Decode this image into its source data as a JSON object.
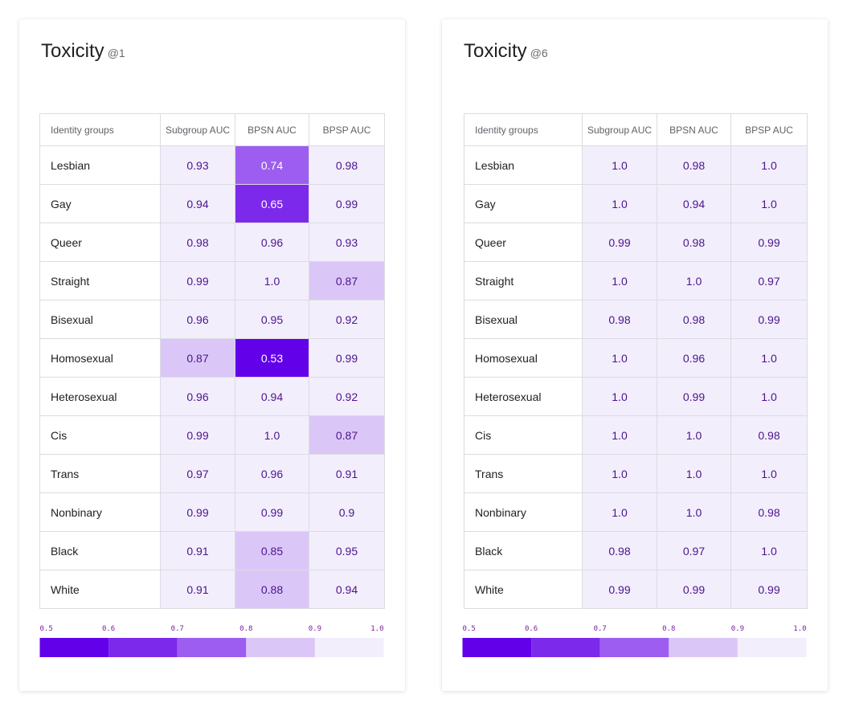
{
  "colors": {
    "scale": [
      "#6200ea",
      "#7c29ec",
      "#9d5df0",
      "#dbc7f7",
      "#f3eefc"
    ],
    "text_dark": "#4a148c",
    "text_light": "#ffffff",
    "tick": "#7b1fa2"
  },
  "chart_data": [
    {
      "type": "heatmap",
      "title": "Toxicity",
      "subtitle": "@1",
      "columns": [
        "Identity groups",
        "Subgroup AUC",
        "BPSN AUC",
        "BPSP AUC"
      ],
      "rows": [
        {
          "label": "Lesbian",
          "values": [
            "0.93",
            "0.74",
            "0.98"
          ]
        },
        {
          "label": "Gay",
          "values": [
            "0.94",
            "0.65",
            "0.99"
          ]
        },
        {
          "label": "Queer",
          "values": [
            "0.98",
            "0.96",
            "0.93"
          ]
        },
        {
          "label": "Straight",
          "values": [
            "0.99",
            "1.0",
            "0.87"
          ]
        },
        {
          "label": "Bisexual",
          "values": [
            "0.96",
            "0.95",
            "0.92"
          ]
        },
        {
          "label": "Homosexual",
          "values": [
            "0.87",
            "0.53",
            "0.99"
          ]
        },
        {
          "label": "Heterosexual",
          "values": [
            "0.96",
            "0.94",
            "0.92"
          ]
        },
        {
          "label": "Cis",
          "values": [
            "0.99",
            "1.0",
            "0.87"
          ]
        },
        {
          "label": "Trans",
          "values": [
            "0.97",
            "0.96",
            "0.91"
          ]
        },
        {
          "label": "Nonbinary",
          "values": [
            "0.99",
            "0.99",
            "0.9"
          ]
        },
        {
          "label": "Black",
          "values": [
            "0.91",
            "0.85",
            "0.95"
          ]
        },
        {
          "label": "White",
          "values": [
            "0.91",
            "0.88",
            "0.94"
          ]
        }
      ],
      "legend": {
        "ticks": [
          "0.5",
          "0.6",
          "0.7",
          "0.8",
          "0.9",
          "1.0"
        ],
        "range": [
          0.5,
          1.0
        ]
      }
    },
    {
      "type": "heatmap",
      "title": "Toxicity",
      "subtitle": "@6",
      "columns": [
        "Identity groups",
        "Subgroup AUC",
        "BPSN AUC",
        "BPSP AUC"
      ],
      "rows": [
        {
          "label": "Lesbian",
          "values": [
            "1.0",
            "0.98",
            "1.0"
          ]
        },
        {
          "label": "Gay",
          "values": [
            "1.0",
            "0.94",
            "1.0"
          ]
        },
        {
          "label": "Queer",
          "values": [
            "0.99",
            "0.98",
            "0.99"
          ]
        },
        {
          "label": "Straight",
          "values": [
            "1.0",
            "1.0",
            "0.97"
          ]
        },
        {
          "label": "Bisexual",
          "values": [
            "0.98",
            "0.98",
            "0.99"
          ]
        },
        {
          "label": "Homosexual",
          "values": [
            "1.0",
            "0.96",
            "1.0"
          ]
        },
        {
          "label": "Heterosexual",
          "values": [
            "1.0",
            "0.99",
            "1.0"
          ]
        },
        {
          "label": "Cis",
          "values": [
            "1.0",
            "1.0",
            "0.98"
          ]
        },
        {
          "label": "Trans",
          "values": [
            "1.0",
            "1.0",
            "1.0"
          ]
        },
        {
          "label": "Nonbinary",
          "values": [
            "1.0",
            "1.0",
            "0.98"
          ]
        },
        {
          "label": "Black",
          "values": [
            "0.98",
            "0.97",
            "1.0"
          ]
        },
        {
          "label": "White",
          "values": [
            "0.99",
            "0.99",
            "0.99"
          ]
        }
      ],
      "legend": {
        "ticks": [
          "0.5",
          "0.6",
          "0.7",
          "0.8",
          "0.9",
          "1.0"
        ],
        "range": [
          0.5,
          1.0
        ]
      }
    }
  ]
}
